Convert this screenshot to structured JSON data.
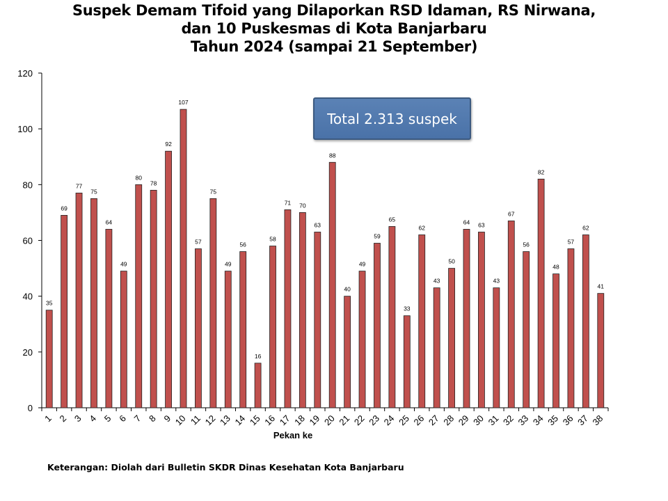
{
  "title_lines": [
    "Suspek Demam Tifoid yang Dilaporkan RSD Idaman, RS Nirwana,",
    "dan 10 Puskesmas di Kota Banjarbaru",
    "Tahun 2024 (sampai 21 September)"
  ],
  "annotation": "Total 2.313 suspek",
  "footnote": "Keterangan: Diolah dari Bulletin SKDR Dinas Kesehatan Kota Banjarbaru",
  "colors": {
    "bar_fill": "#c0504d",
    "bar_stroke": "#222222",
    "box_fill": "#4f77ad"
  },
  "chart_data": {
    "type": "bar",
    "title": "Suspek Demam Tifoid yang Dilaporkan RSD Idaman, RS Nirwana, dan 10 Puskesmas di Kota Banjarbaru Tahun 2024 (sampai 21 September)",
    "xlabel": "Pekan ke",
    "ylabel": "",
    "ylim": [
      0,
      120
    ],
    "yticks": [
      0,
      20,
      40,
      60,
      80,
      100,
      120
    ],
    "grid": false,
    "legend": "none",
    "categories": [
      "1",
      "2",
      "3",
      "4",
      "5",
      "6",
      "7",
      "8",
      "9",
      "10",
      "11",
      "12",
      "13",
      "14",
      "15",
      "16",
      "17",
      "18",
      "19",
      "20",
      "21",
      "22",
      "23",
      "24",
      "25",
      "26",
      "27",
      "28",
      "29",
      "30",
      "31",
      "32",
      "33",
      "34",
      "35",
      "36",
      "37",
      "38"
    ],
    "values": [
      35,
      69,
      77,
      75,
      64,
      49,
      80,
      78,
      92,
      107,
      57,
      75,
      49,
      56,
      16,
      58,
      71,
      70,
      63,
      88,
      40,
      49,
      59,
      65,
      33,
      62,
      43,
      50,
      64,
      63,
      43,
      67,
      56,
      82,
      48,
      57,
      62,
      41
    ]
  }
}
